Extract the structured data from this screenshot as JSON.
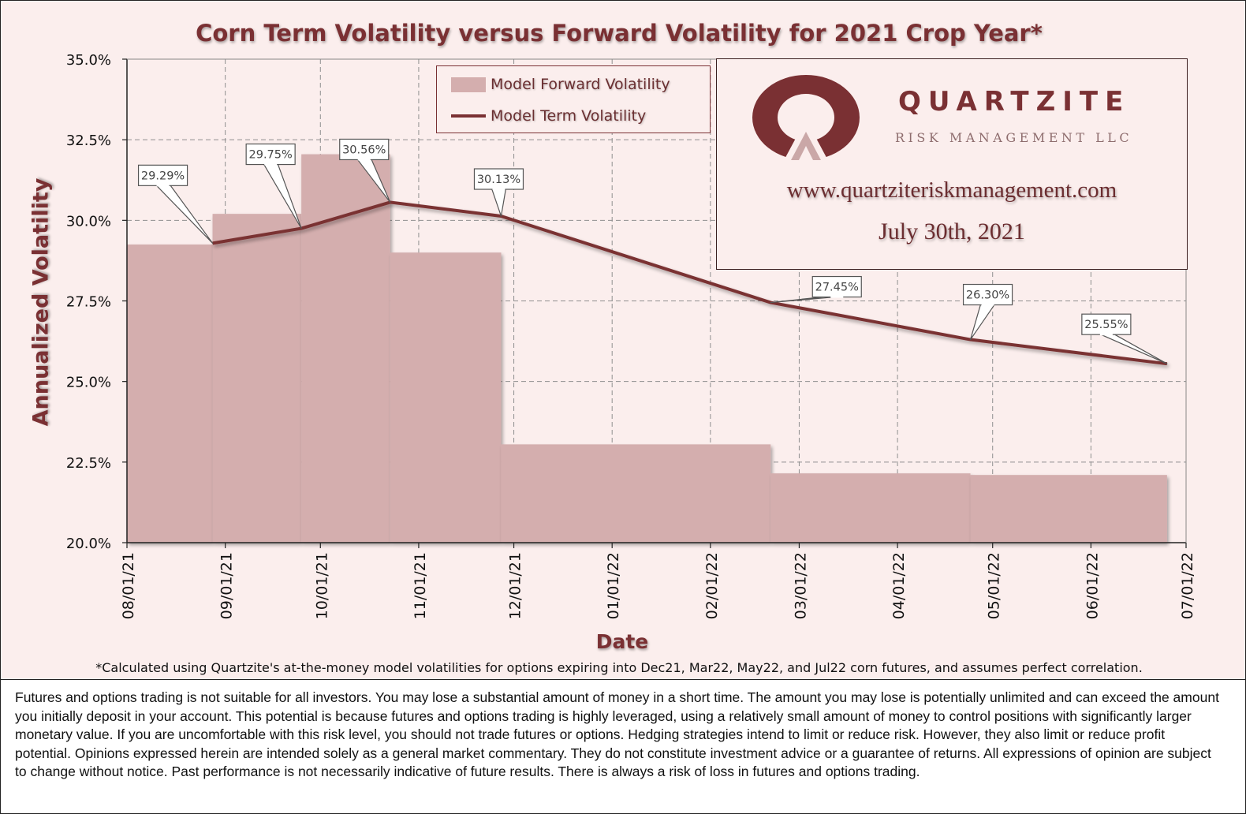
{
  "chart_data": {
    "type": "bar+line",
    "title": "Corn Term Volatility versus Forward Volatility for 2021 Crop Year*",
    "xlabel": "Date",
    "ylabel": "Annualized Volatility",
    "ylim": [
      20.0,
      35.0
    ],
    "y_ticks": [
      "20.0%",
      "22.5%",
      "25.0%",
      "27.5%",
      "30.0%",
      "32.5%",
      "35.0%"
    ],
    "y_tick_values": [
      20.0,
      22.5,
      25.0,
      27.5,
      30.0,
      32.5,
      35.0
    ],
    "x_ticks": [
      "08/01/21",
      "09/01/21",
      "10/01/21",
      "11/01/21",
      "12/01/21",
      "01/01/22",
      "02/01/22",
      "03/01/22",
      "04/01/22",
      "05/01/22",
      "06/01/22",
      "07/01/22"
    ],
    "x_tick_days": [
      0,
      31,
      61,
      92,
      122,
      153,
      184,
      212,
      243,
      273,
      304,
      334
    ],
    "grid": true,
    "legend_position": "top-center",
    "series": [
      {
        "name": "Model Forward Volatility",
        "kind": "step-bar",
        "segments": [
          {
            "start_day": 0,
            "end_day": 27,
            "value": 29.25
          },
          {
            "start_day": 27,
            "end_day": 55,
            "value": 30.2
          },
          {
            "start_day": 55,
            "end_day": 83,
            "value": 32.05
          },
          {
            "start_day": 83,
            "end_day": 118,
            "value": 29.0
          },
          {
            "start_day": 118,
            "end_day": 203,
            "value": 23.05
          },
          {
            "start_day": 203,
            "end_day": 266,
            "value": 22.15
          },
          {
            "start_day": 266,
            "end_day": 328,
            "value": 22.1
          }
        ]
      },
      {
        "name": "Model Term Volatility",
        "kind": "line",
        "points": [
          {
            "day": 27,
            "value": 29.29,
            "label": "29.29%"
          },
          {
            "day": 55,
            "value": 29.75,
            "label": "29.75%"
          },
          {
            "day": 83,
            "value": 30.56,
            "label": "30.56%"
          },
          {
            "day": 118,
            "value": 30.13,
            "label": "30.13%"
          },
          {
            "day": 203,
            "value": 27.45,
            "label": "27.45%"
          },
          {
            "day": 266,
            "value": 26.3,
            "label": "26.30%"
          },
          {
            "day": 328,
            "value": 25.55,
            "label": "25.55%"
          }
        ]
      }
    ],
    "colors": {
      "bar": "#d4aeae",
      "line": "#7a3033",
      "plot_bg": "#fbeeed",
      "grid": "#8f8f8f",
      "accent": "#7a3033"
    }
  },
  "footnote": "*Calculated using Quartzite's at-the-money model volatilities for options expiring into Dec21, Mar22, May22, and Jul22 corn futures, and assumes perfect correlation.",
  "disclaimer": "Futures and options trading is not suitable for all investors. You may lose a substantial amount of money in a short time. The amount you may lose is potentially unlimited and can exceed the amount you initially deposit in your account. This potential is because futures and options trading is highly leveraged, using a relatively small amount of money to control positions with significantly larger monetary value. If you are uncomfortable with this risk level, you should not trade futures or options. Hedging strategies intend to limit or reduce risk. However, they also limit or reduce profit potential. Opinions expressed herein are intended solely as a general market commentary. They do not constitute investment advice or a guarantee of returns. All expressions of opinion are subject to change without notice. Past performance is not necessarily indicative of future results. There is always a risk of loss in futures and options trading.",
  "branding": {
    "company": "QUARTZITE",
    "subtitle": "RISK MANAGEMENT LLC",
    "website": "www.quartziteriskmanagement.com",
    "date": "July 30th, 2021",
    "logo_icon": "quartzite-q-logo-icon"
  }
}
